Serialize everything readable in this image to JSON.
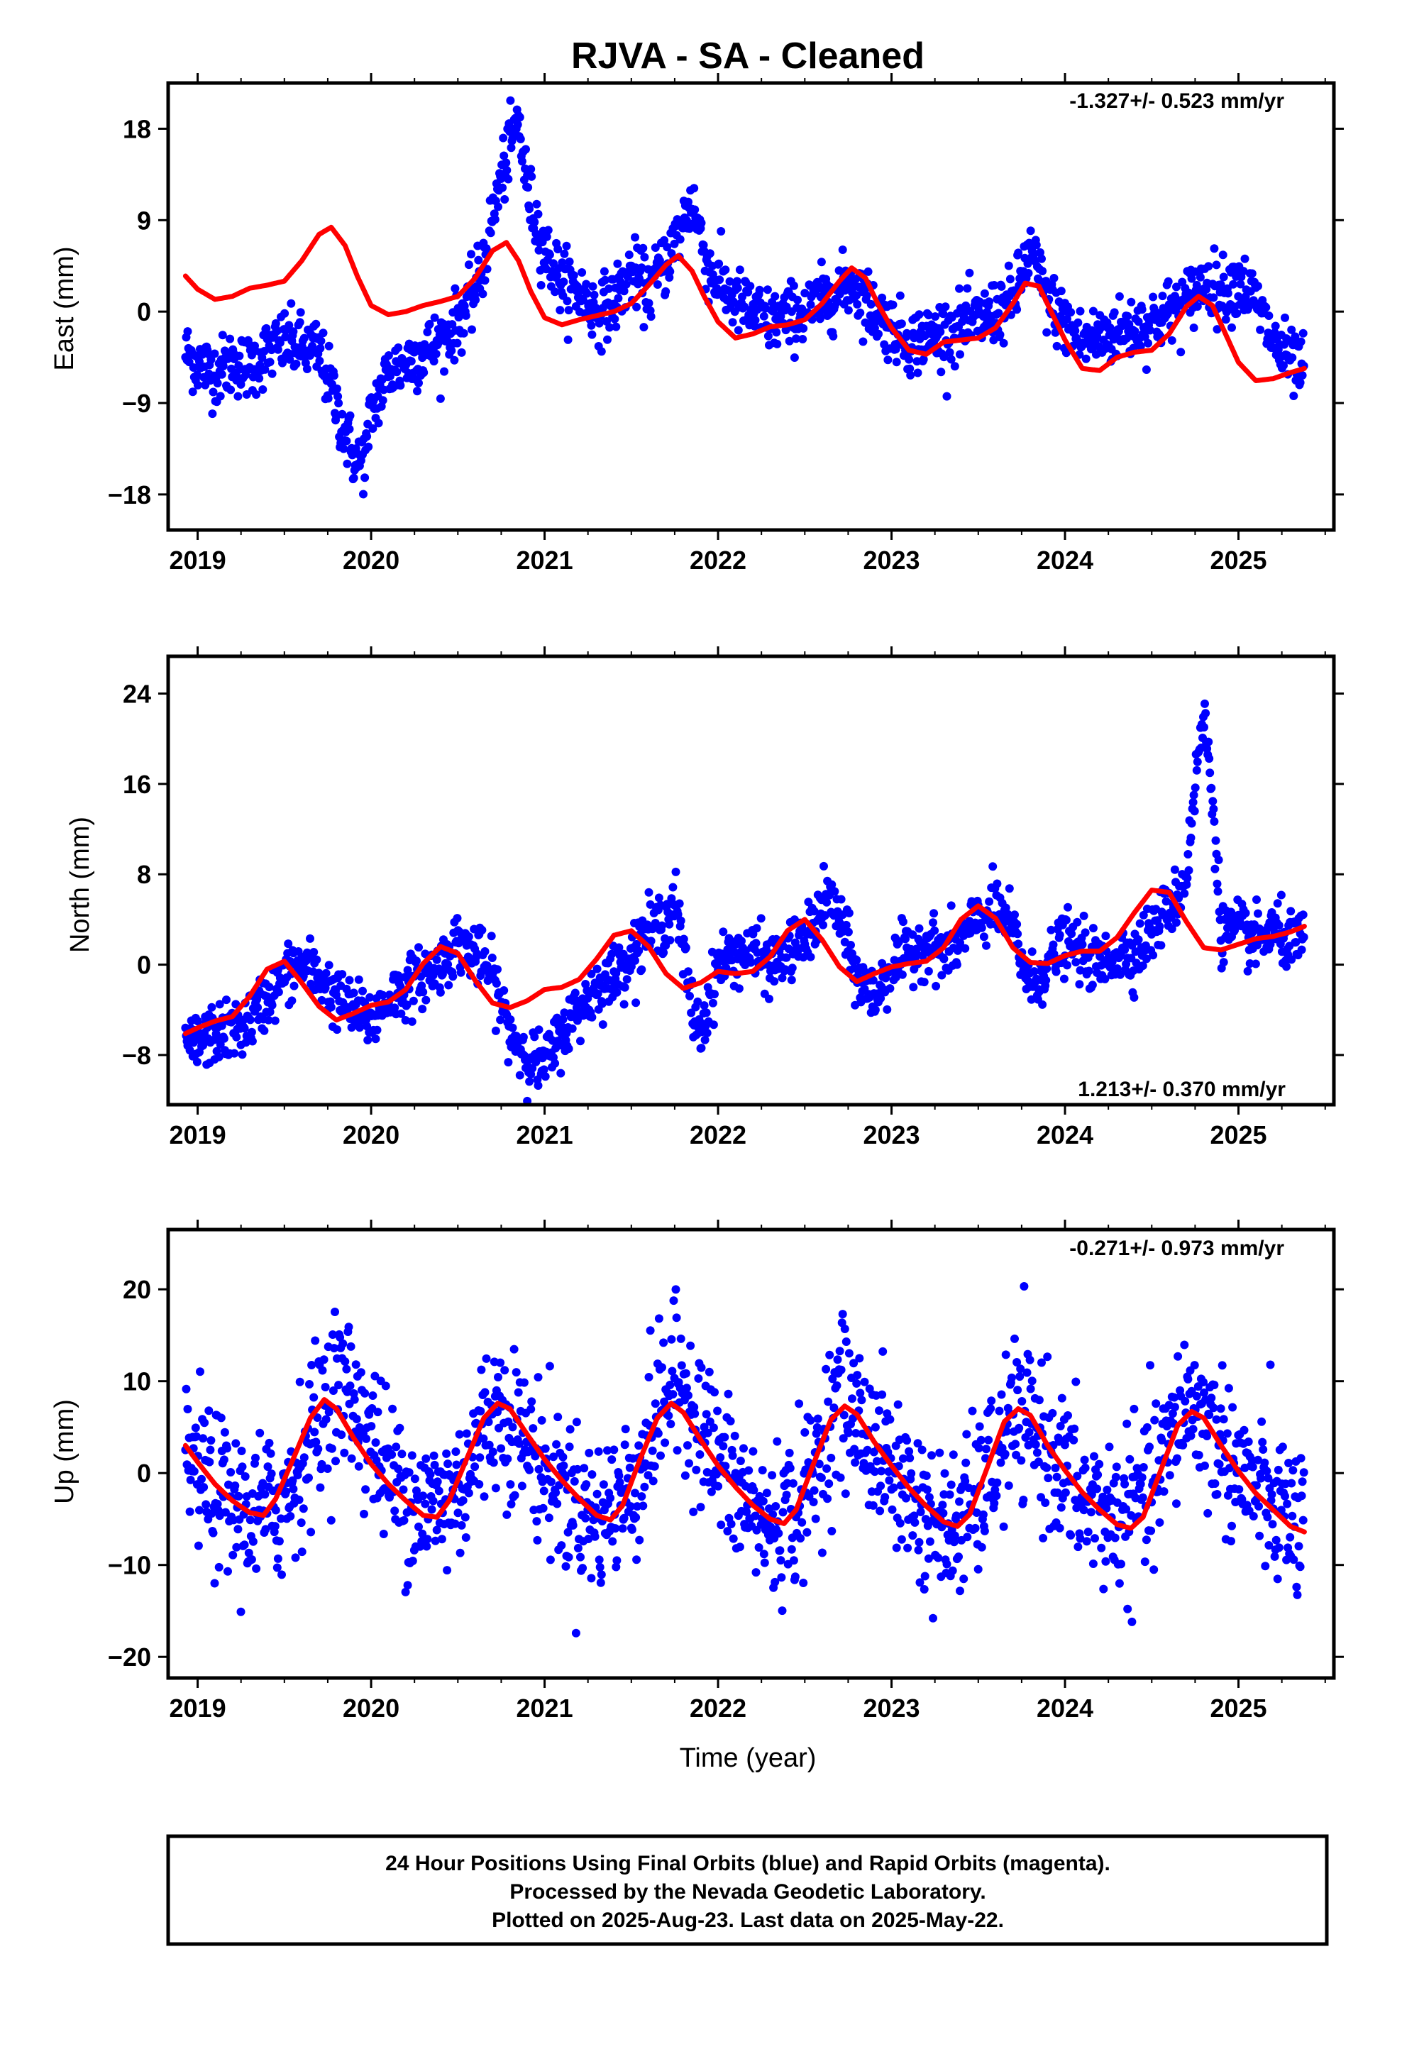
{
  "title": "RJVA  - SA - Cleaned",
  "footer": {
    "line1": "24 Hour Positions Using Final Orbits (blue) and Rapid Orbits (magenta).",
    "line2": "Processed by the Nevada Geodetic Laboratory.",
    "line3": "Plotted on 2025-Aug-23. Last data on 2025-May-22."
  },
  "colors": {
    "data": "#0000ff",
    "model": "#ff0000",
    "frame": "#000000"
  },
  "chart_data": [
    {
      "type": "scatter",
      "component": "east",
      "ylabel": "East (mm)",
      "xlabel": "",
      "rate_label": "-1.327+/- 0.523 mm/yr",
      "rate_position": "top-right",
      "xlim": [
        2018.83,
        2025.55
      ],
      "ylim": [
        -21.5,
        22.5
      ],
      "xticks": [
        2019,
        2020,
        2021,
        2022,
        2023,
        2024,
        2025
      ],
      "yticks": [
        -18,
        -9,
        0,
        9,
        18
      ],
      "yticklabels": [
        "−18",
        "−9",
        "0",
        "9",
        "18"
      ],
      "xticklabels": [
        "2019",
        "2020",
        "2021",
        "2022",
        "2023",
        "2024",
        "2025"
      ],
      "series": [
        {
          "kind": "points",
          "x": [
            2018.93,
            2019.0,
            2019.1,
            2019.2,
            2019.3,
            2019.4,
            2019.5,
            2019.6,
            2019.7,
            2019.78,
            2019.85,
            2019.92,
            2019.97,
            2020.0,
            2020.1,
            2020.2,
            2020.3,
            2020.4,
            2020.5,
            2020.6,
            2020.65,
            2020.72,
            2020.78,
            2020.85,
            2020.9,
            2021.0,
            2021.1,
            2021.2,
            2021.3,
            2021.4,
            2021.5,
            2021.6,
            2021.7,
            2021.78,
            2021.85,
            2021.95,
            2022.1,
            2022.3,
            2022.5,
            2022.6,
            2022.7,
            2022.78,
            2022.9,
            2023.1,
            2023.3,
            2023.5,
            2023.6,
            2023.7,
            2023.8,
            2023.9,
            2024.1,
            2024.3,
            2024.5,
            2024.6,
            2024.7,
            2024.8,
            2024.9,
            2025.0,
            2025.1,
            2025.2,
            2025.3,
            2025.38
          ],
          "y": [
            -4,
            -5,
            -6,
            -5,
            -5.5,
            -4,
            -3,
            -3.5,
            -4,
            -8,
            -12,
            -15,
            -14,
            -10,
            -6,
            -5,
            -4,
            -3,
            -1,
            2,
            5,
            11,
            15,
            19,
            12,
            6,
            3,
            2,
            0,
            1,
            4,
            2,
            5,
            8,
            11,
            4,
            1,
            -1,
            0,
            1,
            2,
            3,
            0,
            -3,
            -2,
            -1,
            0,
            1,
            6,
            1,
            -3,
            -2,
            -1,
            0,
            1,
            3,
            2,
            3,
            1,
            -3,
            -5,
            -6
          ],
          "spread": 1.6
        },
        {
          "kind": "line",
          "name": "",
          "x": [
            2018.93,
            2019.0,
            2019.1,
            2019.2,
            2019.3,
            2019.4,
            2019.5,
            2019.6,
            2019.7,
            2019.77,
            2019.85,
            2019.92,
            2020.0,
            2020.1,
            2020.2,
            2020.3,
            2020.4,
            2020.5,
            2020.6,
            2020.7,
            2020.78,
            2020.85,
            2020.92,
            2021.0,
            2021.1,
            2021.2,
            2021.3,
            2021.4,
            2021.5,
            2021.6,
            2021.7,
            2021.77,
            2021.85,
            2021.92,
            2022.0,
            2022.1,
            2022.2,
            2022.3,
            2022.4,
            2022.5,
            2022.6,
            2022.7,
            2022.77,
            2022.85,
            2022.92,
            2023.0,
            2023.1,
            2023.2,
            2023.3,
            2023.4,
            2023.5,
            2023.6,
            2023.7,
            2023.77,
            2023.85,
            2023.92,
            2024.0,
            2024.1,
            2024.2,
            2024.3,
            2024.4,
            2024.5,
            2024.6,
            2024.7,
            2024.77,
            2024.85,
            2024.92,
            2025.0,
            2025.1,
            2025.2,
            2025.3,
            2025.38
          ],
          "y": [
            3.5,
            2.2,
            1.2,
            1.5,
            2.3,
            2.6,
            3.0,
            5.0,
            7.6,
            8.3,
            6.5,
            3.5,
            0.6,
            -0.3,
            0.0,
            0.6,
            1.0,
            1.5,
            3.3,
            6.0,
            6.8,
            5.0,
            2.0,
            -0.6,
            -1.3,
            -0.8,
            -0.4,
            0.0,
            0.8,
            2.6,
            4.6,
            5.5,
            4.0,
            1.5,
            -1.0,
            -2.6,
            -2.2,
            -1.5,
            -1.3,
            -0.8,
            0.8,
            3.0,
            4.3,
            3.3,
            0.8,
            -1.6,
            -3.8,
            -4.2,
            -3.0,
            -2.8,
            -2.6,
            -1.6,
            0.8,
            2.8,
            2.5,
            0.0,
            -2.8,
            -5.6,
            -5.8,
            -4.5,
            -4.0,
            -3.8,
            -2.2,
            0.5,
            1.5,
            0.6,
            -2.0,
            -5.0,
            -6.8,
            -6.6,
            -6.0,
            -5.6
          ]
        }
      ]
    },
    {
      "type": "scatter",
      "component": "north",
      "ylabel": "North (mm)",
      "xlabel": "",
      "rate_label": "1.213+/- 0.370 mm/yr",
      "rate_position": "bottom-right",
      "xlim": [
        2018.83,
        2025.55
      ],
      "ylim": [
        -12.4,
        27.3
      ],
      "xticks": [
        2019,
        2020,
        2021,
        2022,
        2023,
        2024,
        2025
      ],
      "yticks": [
        -8,
        0,
        8,
        16,
        24
      ],
      "yticklabels": [
        "−8",
        "0",
        "8",
        "16",
        "24"
      ],
      "xticklabels": [
        "2019",
        "2020",
        "2021",
        "2022",
        "2023",
        "2024",
        "2025"
      ],
      "series": [
        {
          "kind": "points",
          "x": [
            2018.93,
            2019.0,
            2019.1,
            2019.2,
            2019.3,
            2019.4,
            2019.5,
            2019.6,
            2019.7,
            2019.8,
            2019.9,
            2020.0,
            2020.1,
            2020.2,
            2020.3,
            2020.4,
            2020.5,
            2020.6,
            2020.7,
            2020.8,
            2020.9,
            2021.0,
            2021.1,
            2021.2,
            2021.3,
            2021.4,
            2021.5,
            2021.6,
            2021.7,
            2021.75,
            2021.8,
            2021.85,
            2021.9,
            2022.0,
            2022.1,
            2022.2,
            2022.3,
            2022.4,
            2022.5,
            2022.6,
            2022.65,
            2022.7,
            2022.8,
            2022.9,
            2023.0,
            2023.1,
            2023.2,
            2023.3,
            2023.4,
            2023.5,
            2023.6,
            2023.7,
            2023.8,
            2023.9,
            2024.0,
            2024.1,
            2024.2,
            2024.3,
            2024.4,
            2024.5,
            2024.6,
            2024.65,
            2024.7,
            2024.75,
            2024.8,
            2024.85,
            2024.9,
            2025.0,
            2025.1,
            2025.2,
            2025.3,
            2025.38
          ],
          "y": [
            -7,
            -7,
            -6,
            -6,
            -5,
            -3,
            -1,
            0,
            -1,
            -3,
            -4,
            -5,
            -3,
            -2,
            -1,
            0,
            2,
            1,
            -1,
            -6,
            -8,
            -9,
            -6,
            -4,
            -2,
            -1,
            1,
            3,
            4,
            6,
            1,
            -4,
            -6,
            0,
            1,
            1,
            0,
            1,
            2,
            5,
            6,
            4,
            -1,
            -3,
            0,
            1,
            2,
            1,
            2,
            4,
            5,
            3,
            -2,
            0,
            2,
            1,
            0,
            1,
            1,
            3,
            5,
            6,
            8,
            16,
            22,
            15,
            3,
            3,
            2,
            3,
            2,
            2
          ],
          "spread": 1.3
        },
        {
          "kind": "line",
          "name": "",
          "x": [
            2018.93,
            2019.0,
            2019.1,
            2019.2,
            2019.3,
            2019.4,
            2019.5,
            2019.6,
            2019.7,
            2019.8,
            2019.9,
            2020.0,
            2020.1,
            2020.2,
            2020.3,
            2020.4,
            2020.5,
            2020.6,
            2020.7,
            2020.8,
            2020.9,
            2021.0,
            2021.1,
            2021.2,
            2021.3,
            2021.4,
            2021.5,
            2021.6,
            2021.7,
            2021.8,
            2021.9,
            2022.0,
            2022.1,
            2022.2,
            2022.3,
            2022.4,
            2022.5,
            2022.6,
            2022.7,
            2022.8,
            2022.9,
            2023.0,
            2023.1,
            2023.2,
            2023.3,
            2023.4,
            2023.5,
            2023.6,
            2023.7,
            2023.8,
            2023.9,
            2024.0,
            2024.1,
            2024.2,
            2024.3,
            2024.4,
            2024.5,
            2024.6,
            2024.7,
            2024.8,
            2024.9,
            2025.0,
            2025.1,
            2025.2,
            2025.3,
            2025.38
          ],
          "y": [
            -6.1,
            -5.6,
            -5.0,
            -4.6,
            -2.8,
            -0.4,
            0.3,
            -1.6,
            -3.7,
            -4.9,
            -4.3,
            -3.6,
            -3.3,
            -2.2,
            0.1,
            1.6,
            1.0,
            -1.4,
            -3.4,
            -3.8,
            -3.2,
            -2.2,
            -2.0,
            -1.3,
            0.5,
            2.6,
            3.0,
            1.6,
            -0.8,
            -2.1,
            -1.6,
            -0.6,
            -0.8,
            -0.6,
            0.7,
            3.0,
            4.0,
            2.2,
            -0.2,
            -1.5,
            -0.8,
            -0.2,
            0.1,
            0.3,
            1.5,
            4.0,
            5.2,
            4.1,
            1.5,
            0.2,
            0.1,
            0.8,
            1.2,
            1.2,
            2.4,
            4.6,
            6.6,
            6.4,
            3.8,
            1.5,
            1.3,
            1.8,
            2.3,
            2.5,
            2.9,
            3.4
          ]
        }
      ]
    },
    {
      "type": "scatter",
      "component": "up",
      "ylabel": "Up (mm)",
      "xlabel": "Time (year)",
      "rate_label": "-0.271+/- 0.973 mm/yr",
      "rate_position": "top-right",
      "xlim": [
        2018.83,
        2025.55
      ],
      "ylim": [
        -22.3,
        26.5
      ],
      "xticks": [
        2019,
        2020,
        2021,
        2022,
        2023,
        2024,
        2025
      ],
      "yticks": [
        -20,
        -10,
        0,
        10,
        20
      ],
      "yticklabels": [
        "−20",
        "−10",
        "0",
        "10",
        "20"
      ],
      "xticklabels": [
        "2019",
        "2020",
        "2021",
        "2022",
        "2023",
        "2024",
        "2025"
      ],
      "series": [
        {
          "kind": "points",
          "x": [
            2018.93,
            2019.1,
            2019.3,
            2019.5,
            2019.7,
            2019.8,
            2019.9,
            2020.1,
            2020.3,
            2020.5,
            2020.7,
            2020.8,
            2020.9,
            2021.1,
            2021.3,
            2021.5,
            2021.7,
            2021.8,
            2021.9,
            2022.1,
            2022.3,
            2022.5,
            2022.7,
            2022.8,
            2022.9,
            2023.1,
            2023.3,
            2023.5,
            2023.7,
            2023.8,
            2023.9,
            2024.1,
            2024.3,
            2024.5,
            2024.7,
            2024.8,
            2024.9,
            2025.1,
            2025.3,
            2025.38
          ],
          "y": [
            2,
            -2,
            -5,
            -3,
            6,
            10,
            8,
            0,
            -4,
            -2,
            7,
            6,
            3,
            -2,
            -5,
            -2,
            9,
            10,
            5,
            -2,
            -6,
            -3,
            9,
            6,
            3,
            -2,
            -7,
            -3,
            6,
            5,
            3,
            -3,
            -5,
            -2,
            8,
            6,
            3,
            -2,
            -5,
            -6
          ],
          "spread": 4.2
        },
        {
          "kind": "line",
          "name": "",
          "x": [
            2018.93,
            2019.0,
            2019.1,
            2019.2,
            2019.3,
            2019.38,
            2019.45,
            2019.55,
            2019.65,
            2019.73,
            2019.8,
            2019.9,
            2020.0,
            2020.1,
            2020.2,
            2020.3,
            2020.38,
            2020.45,
            2020.55,
            2020.65,
            2020.73,
            2020.8,
            2020.9,
            2021.0,
            2021.1,
            2021.2,
            2021.3,
            2021.38,
            2021.45,
            2021.55,
            2021.65,
            2021.73,
            2021.8,
            2021.9,
            2022.0,
            2022.1,
            2022.2,
            2022.3,
            2022.38,
            2022.45,
            2022.55,
            2022.65,
            2022.73,
            2022.8,
            2022.9,
            2023.0,
            2023.1,
            2023.2,
            2023.3,
            2023.38,
            2023.45,
            2023.55,
            2023.65,
            2023.73,
            2023.8,
            2023.9,
            2024.0,
            2024.1,
            2024.2,
            2024.3,
            2024.38,
            2024.45,
            2024.55,
            2024.65,
            2024.73,
            2024.8,
            2024.9,
            2025.0,
            2025.1,
            2025.2,
            2025.3,
            2025.38
          ],
          "y": [
            3.0,
            1.2,
            -1.2,
            -3.0,
            -4.3,
            -4.6,
            -2.8,
            1.5,
            6.0,
            8.0,
            7.0,
            3.8,
            1.0,
            -1.2,
            -3.0,
            -4.6,
            -4.8,
            -3.0,
            1.5,
            6.0,
            7.6,
            7.0,
            4.2,
            1.5,
            -0.8,
            -2.8,
            -4.6,
            -5.1,
            -3.5,
            1.5,
            6.0,
            7.6,
            6.6,
            3.6,
            0.8,
            -1.5,
            -3.5,
            -5.0,
            -5.5,
            -4.0,
            1.0,
            5.8,
            7.3,
            6.4,
            3.4,
            0.8,
            -1.6,
            -3.6,
            -5.3,
            -5.8,
            -4.5,
            0.5,
            5.6,
            7.0,
            6.3,
            3.0,
            0.3,
            -2.1,
            -4.0,
            -5.6,
            -6.0,
            -4.8,
            0.2,
            5.2,
            6.7,
            6.0,
            3.0,
            0.2,
            -2.2,
            -4.0,
            -5.8,
            -6.4
          ]
        }
      ]
    }
  ]
}
